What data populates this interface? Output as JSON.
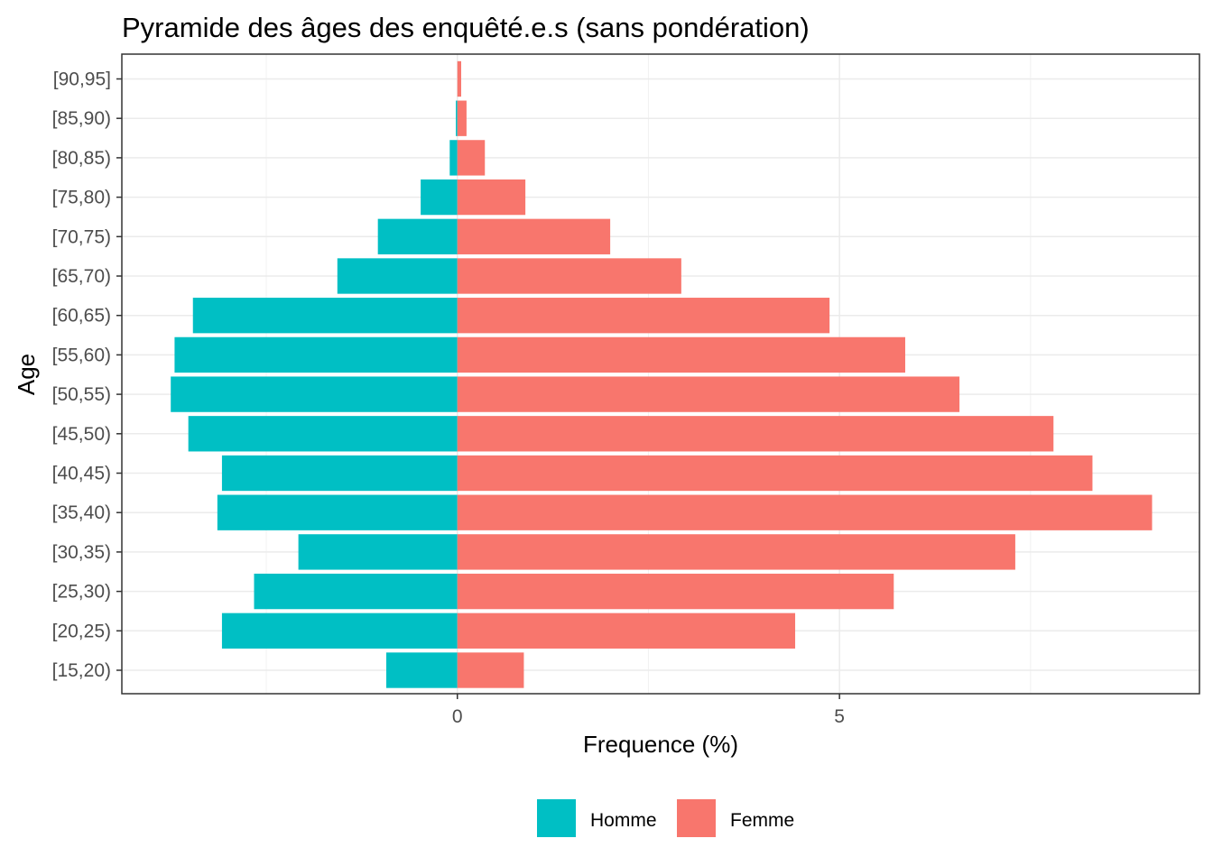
{
  "chart_data": {
    "type": "bar",
    "orientation": "horizontal",
    "title": "Pyramide des âges des enquêté.e.s (sans pondération)",
    "xlabel": "Frequence (%)",
    "ylabel": "Age",
    "categories": [
      "[15,20)",
      "[20,25)",
      "[25,30)",
      "[30,35)",
      "[35,40)",
      "[40,45)",
      "[45,50)",
      "[50,55)",
      "[55,60)",
      "[60,65)",
      "[65,70)",
      "[70,75)",
      "[75,80)",
      "[80,85)",
      "[85,90)",
      "[90,95]"
    ],
    "series": [
      {
        "name": "Homme",
        "color": "#00BFC4",
        "values": [
          -0.93,
          -3.08,
          -2.66,
          -2.08,
          -3.14,
          -3.08,
          -3.52,
          -3.75,
          -3.7,
          -3.46,
          -1.57,
          -1.04,
          -0.48,
          -0.1,
          -0.02,
          0
        ]
      },
      {
        "name": "Femme",
        "color": "#F8766D",
        "values": [
          0.87,
          4.42,
          5.71,
          7.3,
          9.09,
          8.31,
          7.8,
          6.57,
          5.86,
          4.87,
          2.93,
          2.0,
          0.89,
          0.36,
          0.12,
          0.05
        ]
      }
    ],
    "xlim": [
      -4.39,
      9.71
    ],
    "xticks": [
      0,
      5
    ],
    "xtick_labels": [
      "0",
      "5"
    ],
    "grid": true,
    "legend": {
      "position": "bottom",
      "entries": [
        "Homme",
        "Femme"
      ]
    }
  }
}
